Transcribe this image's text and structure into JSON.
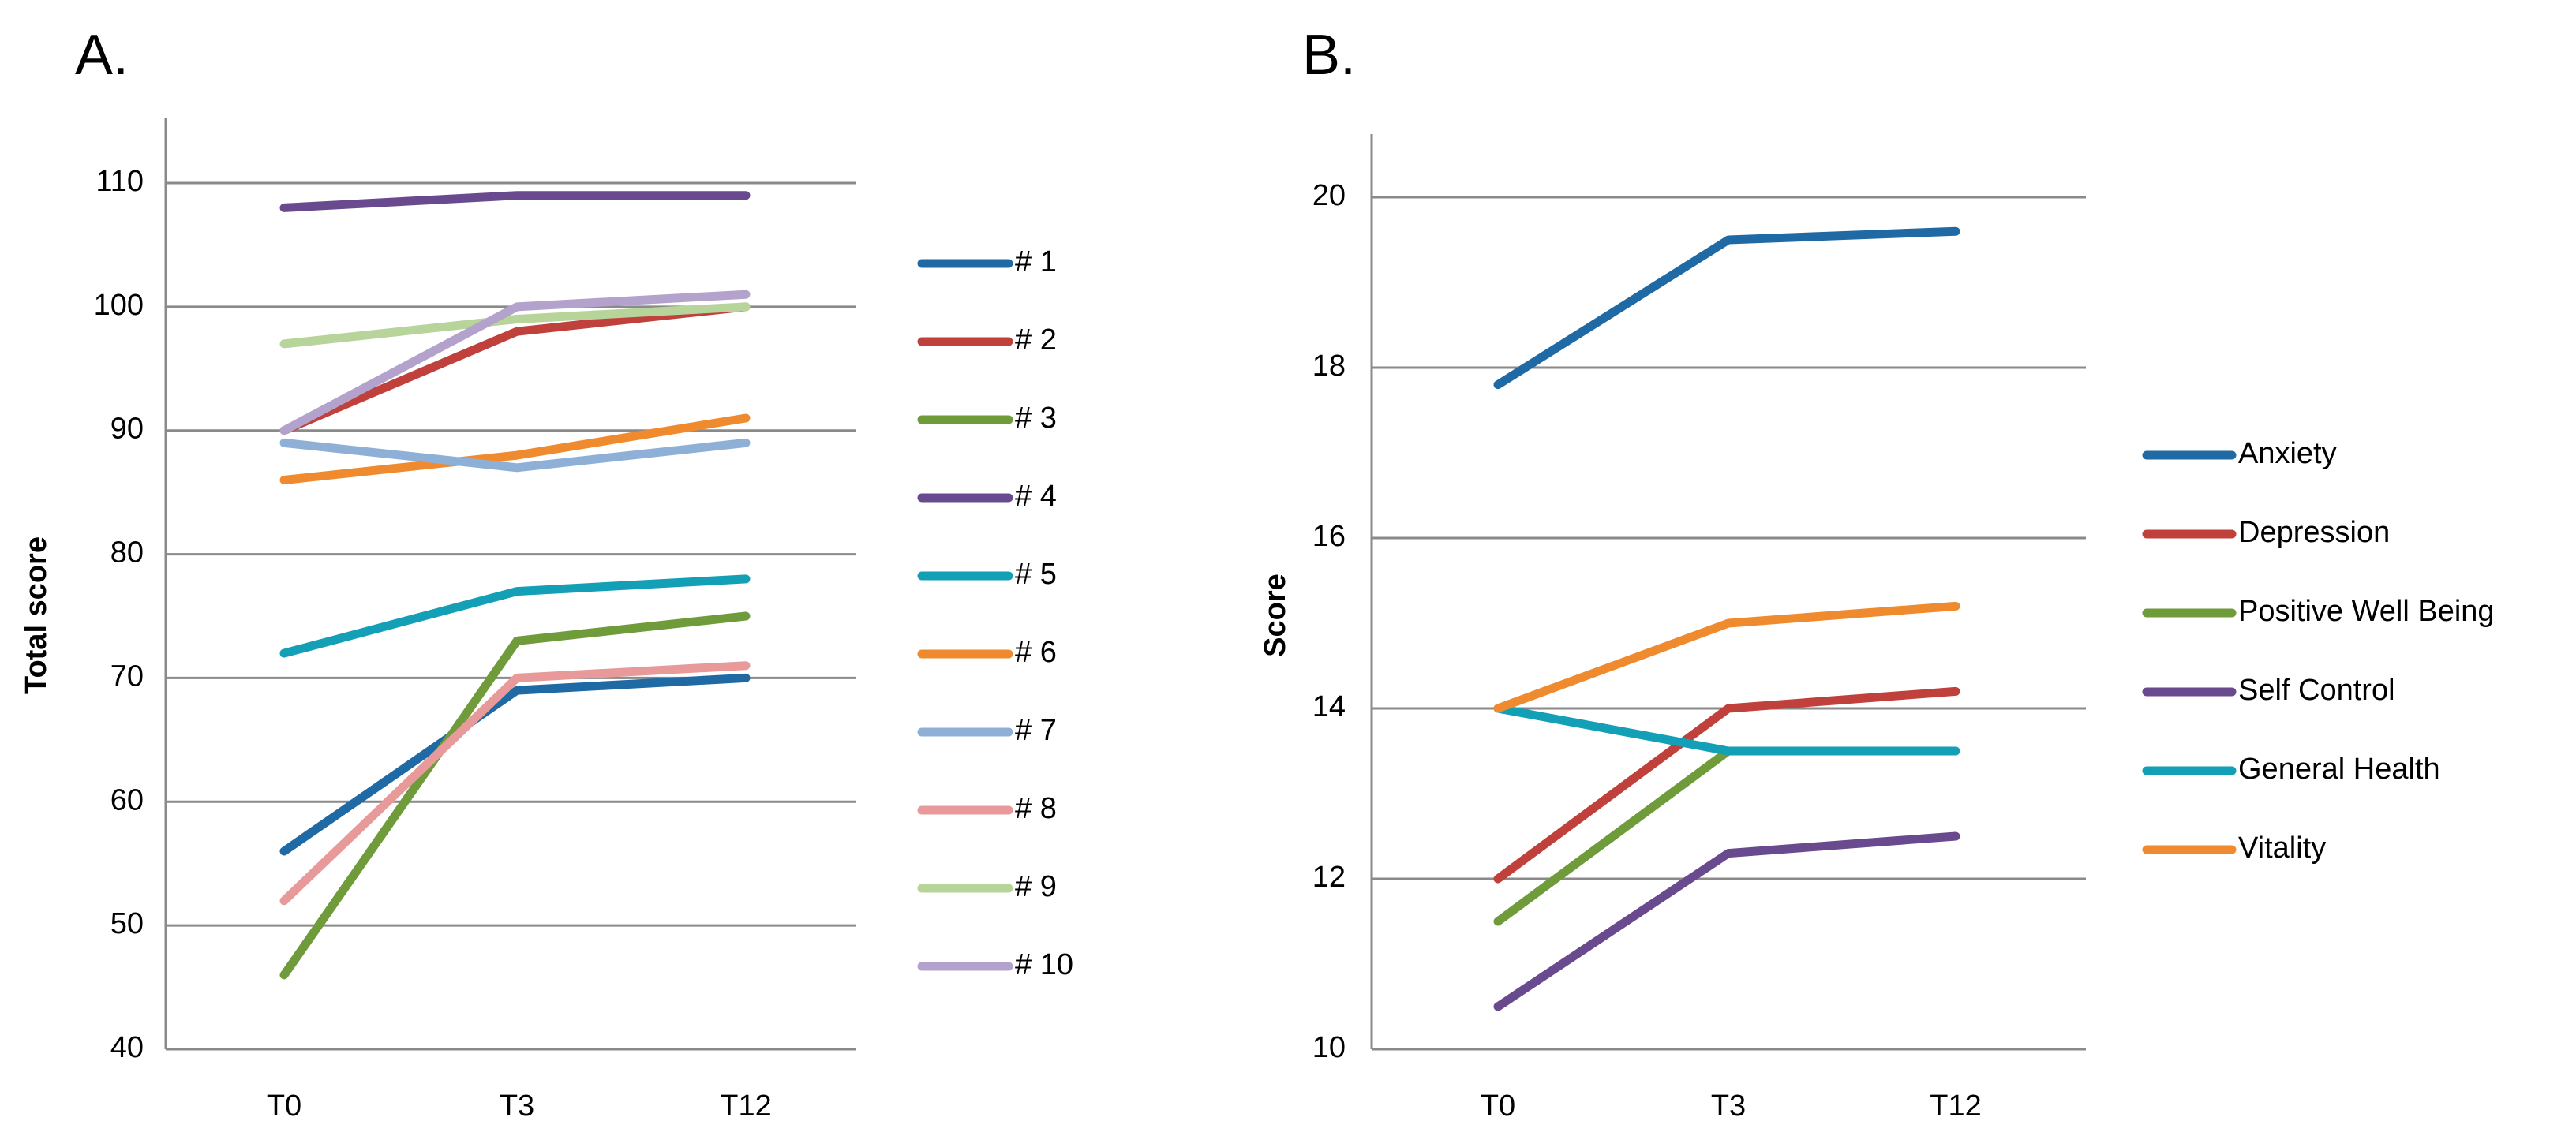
{
  "chart_data": [
    {
      "panel_label": "A.",
      "type": "line",
      "title": "",
      "xlabel": "",
      "ylabel": "Total score",
      "x": [
        "T0",
        "T3",
        "T12"
      ],
      "ylim": [
        40,
        110
      ],
      "yticks": [
        40,
        50,
        60,
        70,
        80,
        90,
        100,
        110
      ],
      "grid": true,
      "legend_placement": "right",
      "series": [
        {
          "name": "# 1",
          "color": "#1f6aa5",
          "values": [
            56,
            69,
            70
          ]
        },
        {
          "name": "# 2",
          "color": "#c0403c",
          "values": [
            90,
            98,
            100
          ]
        },
        {
          "name": "# 3",
          "color": "#6f9b3a",
          "values": [
            46,
            73,
            75
          ]
        },
        {
          "name": "# 4",
          "color": "#6a4a8e",
          "values": [
            108,
            109,
            109
          ]
        },
        {
          "name": "# 5",
          "color": "#139fb5",
          "values": [
            72,
            77,
            78
          ]
        },
        {
          "name": "# 6",
          "color": "#f08a2e",
          "values": [
            86,
            88,
            91
          ]
        },
        {
          "name": "# 7",
          "color": "#8fb0d6",
          "values": [
            89,
            87,
            89
          ]
        },
        {
          "name": "# 8",
          "color": "#e89a9a",
          "values": [
            52,
            70,
            71
          ]
        },
        {
          "name": "# 9",
          "color": "#b7d49a",
          "values": [
            97,
            99,
            100
          ]
        },
        {
          "name": "# 10",
          "color": "#b3a3cc",
          "values": [
            90,
            100,
            101
          ]
        }
      ]
    },
    {
      "panel_label": "B.",
      "type": "line",
      "title": "",
      "xlabel": "",
      "ylabel": "Score",
      "x": [
        "T0",
        "T3",
        "T12"
      ],
      "ylim": [
        10,
        20
      ],
      "yticks": [
        10,
        12,
        14,
        16,
        18,
        20
      ],
      "grid": true,
      "legend_placement": "right",
      "series": [
        {
          "name": "Anxiety",
          "color": "#1f6aa5",
          "values": [
            17.8,
            19.5,
            19.6
          ]
        },
        {
          "name": "Depression",
          "color": "#c0403c",
          "values": [
            12,
            14,
            14.2
          ]
        },
        {
          "name": "Positive Well Being",
          "color": "#6f9b3a",
          "values": [
            11.5,
            13.5,
            null
          ]
        },
        {
          "name": "Self Control",
          "color": "#6a4a8e",
          "values": [
            10.5,
            12.3,
            12.5
          ]
        },
        {
          "name": "General Health",
          "color": "#139fb5",
          "values": [
            14,
            13.5,
            13.5
          ]
        },
        {
          "name": "Vitality",
          "color": "#f08a2e",
          "values": [
            14,
            15,
            15.2
          ]
        }
      ]
    }
  ]
}
